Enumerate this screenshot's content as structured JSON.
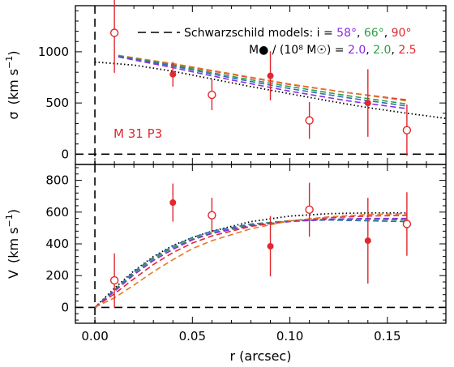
{
  "colors": {
    "purple": "#8a2be2",
    "green": "#2e9e47",
    "red": "#e0282e",
    "blue": "#2d6fb5",
    "orange": "#e07a2e",
    "black": "#000000"
  },
  "chart_data": [
    {
      "panel": "top",
      "type": "scatter",
      "ylabel_main": "σ",
      "ylabel_units": "(km s",
      "ylabel_exp": "−1",
      "ylabel_close": ")",
      "panel_label": "M 31  P3",
      "xlim": [
        -0.01,
        0.18
      ],
      "ylim": [
        -100,
        1450
      ],
      "yticks": [
        0,
        500,
        1000
      ],
      "ytick_labels": [
        "0",
        "500",
        "1000"
      ],
      "xticks": [
        0.0,
        0.05,
        0.1,
        0.15
      ],
      "legend": {
        "line1_prefix": "Schwarzschild models:  i = ",
        "line1_values": [
          "58°",
          "66°",
          "90°"
        ],
        "line1_seps": [
          ", ",
          ", ",
          ""
        ],
        "line2_prefix": "M● / (10⁸ M☉) = ",
        "line2_values": [
          "2.0",
          "2.0",
          "2.5"
        ],
        "line2_seps": [
          ", ",
          ", ",
          ""
        ]
      },
      "reference_lines": [
        {
          "orientation": "horizontal",
          "value": 0,
          "style": "dashed"
        },
        {
          "orientation": "vertical",
          "value": 0,
          "style": "dashed"
        }
      ],
      "series": [
        {
          "name": "filled",
          "marker": "filled-circle",
          "color": "#e0282e",
          "points": [
            {
              "x": 0.04,
              "y": 780,
              "err": 120
            },
            {
              "x": 0.09,
              "y": 765,
              "err": 240
            },
            {
              "x": 0.14,
              "y": 500,
              "err": 330
            }
          ]
        },
        {
          "name": "open",
          "marker": "open-circle",
          "color": "#e0282e",
          "points": [
            {
              "x": 0.01,
              "y": 1185,
              "err": 390
            },
            {
              "x": 0.06,
              "y": 580,
              "err": 150
            },
            {
              "x": 0.11,
              "y": 330,
              "err": 180
            },
            {
              "x": 0.16,
              "y": 235,
              "err": 250
            }
          ]
        }
      ],
      "model_curves": [
        {
          "color": "#e0282e",
          "style": "dashed",
          "x": [
            0.012,
            0.04,
            0.07,
            0.1,
            0.13,
            0.16
          ],
          "y": [
            960,
            880,
            780,
            680,
            600,
            530
          ]
        },
        {
          "color": "#e07a2e",
          "style": "dashed",
          "x": [
            0.012,
            0.04,
            0.07,
            0.1,
            0.13,
            0.16
          ],
          "y": [
            965,
            885,
            785,
            685,
            600,
            520
          ]
        },
        {
          "color": "#2e9e47",
          "style": "dashed",
          "x": [
            0.012,
            0.04,
            0.07,
            0.1,
            0.13,
            0.16
          ],
          "y": [
            960,
            870,
            760,
            660,
            570,
            490
          ]
        },
        {
          "color": "#2d6fb5",
          "style": "dashed",
          "x": [
            0.012,
            0.04,
            0.07,
            0.1,
            0.13,
            0.16
          ],
          "y": [
            955,
            860,
            745,
            640,
            550,
            470
          ]
        },
        {
          "color": "#8a2be2",
          "style": "dashed",
          "x": [
            0.012,
            0.04,
            0.07,
            0.1,
            0.13,
            0.16
          ],
          "y": [
            950,
            845,
            725,
            615,
            520,
            445
          ]
        },
        {
          "color": "#000000",
          "style": "dotted",
          "x": [
            0.0,
            0.02,
            0.04,
            0.06,
            0.08,
            0.1,
            0.12,
            0.14,
            0.16,
            0.18
          ],
          "y": [
            900,
            870,
            810,
            735,
            660,
            590,
            520,
            455,
            400,
            350
          ]
        }
      ]
    },
    {
      "panel": "bottom",
      "type": "scatter",
      "ylabel_main": "V",
      "ylabel_units": "(km s",
      "ylabel_exp": "−1",
      "ylabel_close": ")",
      "xlabel": "r  (arcsec)",
      "xlim": [
        -0.01,
        0.18
      ],
      "ylim": [
        -100,
        900
      ],
      "yticks": [
        0,
        200,
        400,
        600,
        800
      ],
      "ytick_labels": [
        "0",
        "200",
        "400",
        "600",
        "800"
      ],
      "xticks": [
        0.0,
        0.05,
        0.1,
        0.15
      ],
      "xtick_labels": [
        "0.00",
        "0.05",
        "0.10",
        "0.15"
      ],
      "reference_lines": [
        {
          "orientation": "horizontal",
          "value": 0,
          "style": "dashed"
        },
        {
          "orientation": "vertical",
          "value": 0,
          "style": "dashed"
        }
      ],
      "series": [
        {
          "name": "filled",
          "marker": "filled-circle",
          "color": "#e0282e",
          "points": [
            {
              "x": 0.04,
              "y": 660,
              "err": 120
            },
            {
              "x": 0.09,
              "y": 385,
              "err": 190
            },
            {
              "x": 0.14,
              "y": 420,
              "err": 270
            }
          ]
        },
        {
          "name": "open",
          "marker": "open-circle",
          "color": "#e0282e",
          "points": [
            {
              "x": 0.01,
              "y": 170,
              "err": 170
            },
            {
              "x": 0.06,
              "y": 580,
              "err": 110
            },
            {
              "x": 0.11,
              "y": 615,
              "err": 170
            },
            {
              "x": 0.16,
              "y": 525,
              "err": 200
            }
          ]
        }
      ],
      "model_curves": [
        {
          "color": "#000000",
          "style": "dotted",
          "x": [
            0.0,
            0.01,
            0.02,
            0.03,
            0.04,
            0.05,
            0.06,
            0.08,
            0.1,
            0.12,
            0.14,
            0.16
          ],
          "y": [
            0,
            120,
            230,
            320,
            390,
            440,
            480,
            540,
            575,
            590,
            595,
            595
          ]
        },
        {
          "color": "#2d6fb5",
          "style": "dashed",
          "x": [
            0.0,
            0.01,
            0.02,
            0.03,
            0.04,
            0.05,
            0.06,
            0.08,
            0.1,
            0.12,
            0.14,
            0.16
          ],
          "y": [
            0,
            110,
            225,
            315,
            385,
            440,
            480,
            525,
            545,
            550,
            545,
            540
          ]
        },
        {
          "color": "#2e9e47",
          "style": "dashed",
          "x": [
            0.0,
            0.01,
            0.02,
            0.03,
            0.04,
            0.05,
            0.06,
            0.08,
            0.1,
            0.12,
            0.14,
            0.16
          ],
          "y": [
            0,
            105,
            215,
            305,
            375,
            430,
            470,
            520,
            545,
            555,
            555,
            550
          ]
        },
        {
          "color": "#8a2be2",
          "style": "dashed",
          "x": [
            0.0,
            0.01,
            0.02,
            0.03,
            0.04,
            0.05,
            0.06,
            0.08,
            0.1,
            0.12,
            0.14,
            0.16
          ],
          "y": [
            0,
            100,
            205,
            295,
            365,
            425,
            465,
            515,
            540,
            555,
            560,
            560
          ]
        },
        {
          "color": "#e0282e",
          "style": "dashed",
          "x": [
            0.0,
            0.01,
            0.02,
            0.03,
            0.04,
            0.05,
            0.06,
            0.08,
            0.1,
            0.12,
            0.14,
            0.16
          ],
          "y": [
            0,
            85,
            180,
            270,
            345,
            405,
            450,
            510,
            545,
            565,
            575,
            580
          ]
        },
        {
          "color": "#e07a2e",
          "style": "dashed",
          "x": [
            0.0,
            0.01,
            0.02,
            0.03,
            0.04,
            0.05,
            0.06,
            0.08,
            0.1,
            0.12,
            0.14,
            0.16
          ],
          "y": [
            0,
            60,
            140,
            225,
            300,
            370,
            420,
            495,
            545,
            570,
            585,
            590
          ]
        }
      ]
    }
  ]
}
